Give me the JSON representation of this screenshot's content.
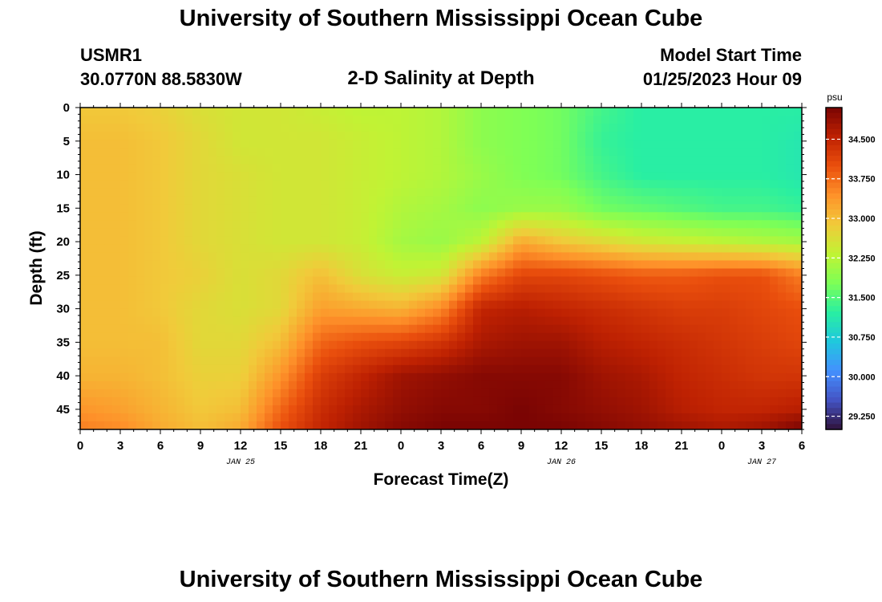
{
  "page": {
    "title": "University of Southern Mississippi Ocean Cube",
    "station_id": "USMR1",
    "station_coords": "30.0770N  88.5830W",
    "chart_heading": "2-D Salinity at Depth",
    "model_start_label": "Model Start Time",
    "model_start_value": "01/25/2023 Hour 09",
    "footer_title": "University of Southern Mississippi Ocean Cube"
  },
  "chart_data": {
    "type": "heatmap",
    "title": "2-D Salinity at Depth",
    "xlabel": "Forecast Time(Z)",
    "ylabel": "Depth (ft)",
    "x_hours": [
      0,
      3,
      6,
      9,
      12,
      15,
      18,
      21,
      24,
      27,
      30,
      33,
      36,
      39,
      42,
      45,
      48,
      51,
      54
    ],
    "x_tick_labels": [
      "0",
      "3",
      "6",
      "9",
      "12",
      "15",
      "18",
      "21",
      "0",
      "3",
      "6",
      "9",
      "12",
      "15",
      "18",
      "21",
      "0",
      "3",
      "6"
    ],
    "date_labels": [
      {
        "hour": 12,
        "label": "JAN 25"
      },
      {
        "hour": 36,
        "label": "JAN 26"
      },
      {
        "hour": 51,
        "label": "JAN 27"
      }
    ],
    "xlim": [
      0,
      54
    ],
    "ylim": [
      0,
      48
    ],
    "y_ticks": [
      0,
      5,
      10,
      15,
      20,
      25,
      30,
      35,
      40,
      45
    ],
    "y_tick_labels": [
      "0",
      "5",
      "10",
      "15",
      "20",
      "25",
      "30",
      "35",
      "40",
      "45"
    ],
    "depth_levels": [
      0,
      5,
      10,
      15,
      20,
      25,
      30,
      35,
      40,
      45,
      48
    ],
    "salinity_grid": [
      [
        32.9,
        32.9,
        32.8,
        32.6,
        32.5,
        32.5,
        32.4,
        32.3,
        32.3,
        32.2,
        31.9,
        31.8,
        31.7,
        31.4,
        31.2,
        31.2,
        31.2,
        31.2,
        31.2
      ],
      [
        33.0,
        33.0,
        32.9,
        32.7,
        32.5,
        32.5,
        32.5,
        32.4,
        32.3,
        32.2,
        31.9,
        31.8,
        31.7,
        31.3,
        31.2,
        31.2,
        31.2,
        31.2,
        31.1
      ],
      [
        33.0,
        33.0,
        32.9,
        32.7,
        32.6,
        32.5,
        32.5,
        32.4,
        32.3,
        32.2,
        32.0,
        31.8,
        31.7,
        31.4,
        31.2,
        31.2,
        31.2,
        31.2,
        31.1
      ],
      [
        33.0,
        33.0,
        32.9,
        32.7,
        32.6,
        32.5,
        32.5,
        32.4,
        32.2,
        32.1,
        31.9,
        32.0,
        32.0,
        31.7,
        31.6,
        31.5,
        31.4,
        31.4,
        31.3
      ],
      [
        33.0,
        33.0,
        32.9,
        32.7,
        32.6,
        32.5,
        32.5,
        32.4,
        32.1,
        32.0,
        32.3,
        33.2,
        32.9,
        32.7,
        32.5,
        32.4,
        32.3,
        32.2,
        32.1
      ],
      [
        33.0,
        33.0,
        32.9,
        32.8,
        32.6,
        32.7,
        33.0,
        32.6,
        32.4,
        32.5,
        33.6,
        34.1,
        34.1,
        34.0,
        33.9,
        33.9,
        34.0,
        34.0,
        33.6
      ],
      [
        33.0,
        33.0,
        32.9,
        32.7,
        32.6,
        32.7,
        33.3,
        33.2,
        33.1,
        33.5,
        34.5,
        34.6,
        34.5,
        34.4,
        34.3,
        34.2,
        34.2,
        34.1,
        34.0
      ],
      [
        33.0,
        33.0,
        33.0,
        32.7,
        32.7,
        33.0,
        33.8,
        34.0,
        34.1,
        34.3,
        34.7,
        34.8,
        34.8,
        34.6,
        34.5,
        34.4,
        34.3,
        34.2,
        34.1
      ],
      [
        33.1,
        33.1,
        33.0,
        32.8,
        32.8,
        33.4,
        34.2,
        34.5,
        34.8,
        34.9,
        35.0,
        35.0,
        35.0,
        34.8,
        34.7,
        34.5,
        34.4,
        34.3,
        34.3
      ],
      [
        33.4,
        33.3,
        33.1,
        32.9,
        33.0,
        33.8,
        34.4,
        34.7,
        34.9,
        35.0,
        35.0,
        35.1,
        35.0,
        34.9,
        34.8,
        34.6,
        34.5,
        34.5,
        34.6
      ],
      [
        33.6,
        33.5,
        33.2,
        33.0,
        33.2,
        34.0,
        34.5,
        34.8,
        35.0,
        35.1,
        35.1,
        35.1,
        35.1,
        35.0,
        34.9,
        34.8,
        34.7,
        34.8,
        35.1
      ]
    ],
    "colorbar": {
      "unit": "psu",
      "min": 29.0,
      "max": 35.1,
      "ticks": [
        "34.500",
        "33.750",
        "33.000",
        "32.250",
        "31.500",
        "30.750",
        "30.000",
        "29.250"
      ],
      "tick_values": [
        34.5,
        33.75,
        33.0,
        32.25,
        31.5,
        30.75,
        30.0,
        29.25
      ]
    },
    "colormap": [
      "#30123b",
      "#4454c4",
      "#4490fe",
      "#1fc8de",
      "#29efa2",
      "#7dff56",
      "#c1f334",
      "#f1ca3a",
      "#fe922a",
      "#ea4f0d",
      "#be2102",
      "#7a0403"
    ]
  }
}
